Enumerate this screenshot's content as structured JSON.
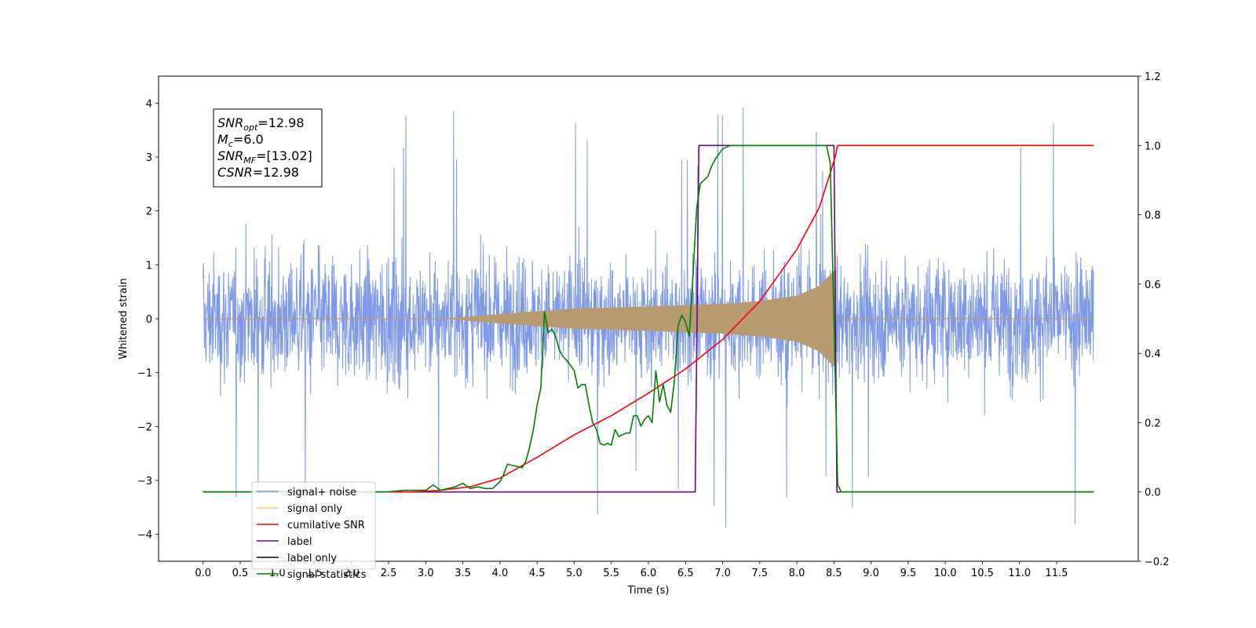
{
  "chart_data": {
    "type": "line",
    "xlabel": "Time (s)",
    "ylabel": "Whitened strain",
    "xlim": [
      -0.6,
      12.6
    ],
    "ylim_left": [
      -4.5,
      4.5
    ],
    "ylim_right": [
      -0.2,
      1.2
    ],
    "x_ticks": [
      0.0,
      0.5,
      1.0,
      1.5,
      2.0,
      2.5,
      3.0,
      3.5,
      4.0,
      4.5,
      5.0,
      5.5,
      6.0,
      6.5,
      7.0,
      7.5,
      8.0,
      8.5,
      9.0,
      9.5,
      10.0,
      10.5,
      11.0,
      11.5
    ],
    "x_tick_labels": [
      "0.0",
      "0.5",
      "1.0",
      "1.5",
      "2.0",
      "2.5",
      "3.0",
      "3.5",
      "4.0",
      "4.5",
      "5.0",
      "5.5",
      "6.0",
      "6.5",
      "7.0",
      "7.5",
      "8.0",
      "8.5",
      "9.0",
      "9.5",
      "10.0",
      "10.5",
      "11.0",
      "11.5"
    ],
    "y_left_ticks": [
      4,
      3,
      2,
      1,
      0,
      -1,
      -2,
      -3,
      -4
    ],
    "y_left_tick_labels": [
      "4",
      "3",
      "2",
      "1",
      "0",
      "−1",
      "−2",
      "−3",
      "−4"
    ],
    "y_right_ticks": [
      1.2,
      1.0,
      0.8,
      0.6,
      0.4,
      0.2,
      0.0,
      -0.2
    ],
    "y_right_tick_labels": [
      "1.2",
      "1.0",
      "0.8",
      "0.6",
      "0.4",
      "0.2",
      "0.0",
      "−0.2"
    ],
    "info_box": [
      {
        "sym": "SNR",
        "sub": "opt",
        "value": "=12.98"
      },
      {
        "sym": "M",
        "sub": "c",
        "value": "=6.0"
      },
      {
        "sym": "SNR",
        "sub": "MF",
        "value": "=[13.02]"
      },
      {
        "sym": "CSNR",
        "sub": "",
        "value": "=12.98"
      }
    ],
    "legend_position": "lower-left",
    "legend": [
      {
        "label": "signal+ noise",
        "color": "#7893e8"
      },
      {
        "label": "signal only",
        "color": "#ffc970"
      },
      {
        "label": "cumilative SNR",
        "color": "#ff0000"
      },
      {
        "label": "label",
        "color": "#6a0a7a"
      },
      {
        "label": "label only",
        "color": "#000000"
      },
      {
        "label": "signal statistics",
        "color": "#008000"
      }
    ],
    "series": [
      {
        "name": "signal+ noise",
        "axis": "left",
        "color": "#7893e8",
        "kind": "noise",
        "x_range": [
          0.0,
          12.0
        ],
        "typical_amplitude": 1.6,
        "peak_max": 4.1,
        "peak_min": -4.0
      },
      {
        "name": "signal only",
        "axis": "left",
        "color": "#b89a70",
        "kind": "chirp",
        "x_range": [
          3.3,
          8.5
        ],
        "envelope": [
          [
            3.3,
            0.0
          ],
          [
            4.0,
            0.08
          ],
          [
            5.0,
            0.18
          ],
          [
            6.0,
            0.22
          ],
          [
            7.0,
            0.27
          ],
          [
            7.5,
            0.32
          ],
          [
            8.0,
            0.42
          ],
          [
            8.3,
            0.6
          ],
          [
            8.5,
            0.88
          ],
          [
            8.52,
            0.0
          ]
        ]
      },
      {
        "name": "cumilative SNR",
        "axis": "right",
        "color": "#ff0000",
        "x": [
          0.0,
          2.8,
          3.2,
          3.6,
          4.0,
          4.5,
          5.0,
          5.5,
          6.0,
          6.5,
          7.0,
          7.5,
          8.0,
          8.3,
          8.45,
          8.52,
          8.55,
          12.0
        ],
        "y": [
          0.0,
          0.0,
          0.005,
          0.015,
          0.04,
          0.1,
          0.165,
          0.22,
          0.285,
          0.355,
          0.44,
          0.55,
          0.7,
          0.82,
          0.92,
          0.97,
          1.0,
          1.0
        ]
      },
      {
        "name": "label",
        "axis": "right",
        "color": "#6a0a7a",
        "x": [
          0.0,
          6.63,
          6.68,
          8.5,
          8.54,
          12.0
        ],
        "y": [
          0.0,
          0.0,
          1.0,
          1.0,
          0.0,
          0.0
        ]
      },
      {
        "name": "signal statistics",
        "axis": "right",
        "color": "#008000",
        "x": [
          0.0,
          2.5,
          2.7,
          3.0,
          3.1,
          3.2,
          3.3,
          3.4,
          3.45,
          3.5,
          3.6,
          3.7,
          3.8,
          3.9,
          4.0,
          4.05,
          4.1,
          4.2,
          4.3,
          4.35,
          4.4,
          4.45,
          4.5,
          4.55,
          4.6,
          4.65,
          4.7,
          4.75,
          4.8,
          4.85,
          4.9,
          5.0,
          5.05,
          5.1,
          5.15,
          5.2,
          5.25,
          5.3,
          5.35,
          5.4,
          5.45,
          5.5,
          5.55,
          5.6,
          5.7,
          5.75,
          5.8,
          5.85,
          5.9,
          5.95,
          6.0,
          6.05,
          6.1,
          6.15,
          6.2,
          6.25,
          6.3,
          6.35,
          6.4,
          6.45,
          6.5,
          6.55,
          6.6,
          6.65,
          6.7,
          6.75,
          6.8,
          6.85,
          6.9,
          7.0,
          7.1,
          7.2,
          7.3,
          8.4,
          8.45,
          8.5,
          8.55,
          8.6,
          8.65,
          12.0
        ],
        "y": [
          0.0,
          0.0,
          0.005,
          0.005,
          0.02,
          0.005,
          0.01,
          0.015,
          0.02,
          0.025,
          0.01,
          0.015,
          0.01,
          0.01,
          0.03,
          0.05,
          0.08,
          0.075,
          0.07,
          0.09,
          0.13,
          0.18,
          0.25,
          0.3,
          0.52,
          0.46,
          0.47,
          0.45,
          0.41,
          0.39,
          0.38,
          0.35,
          0.3,
          0.31,
          0.31,
          0.25,
          0.2,
          0.18,
          0.14,
          0.135,
          0.14,
          0.135,
          0.18,
          0.16,
          0.17,
          0.17,
          0.22,
          0.22,
          0.19,
          0.21,
          0.22,
          0.2,
          0.35,
          0.26,
          0.31,
          0.25,
          0.23,
          0.32,
          0.48,
          0.51,
          0.49,
          0.45,
          0.62,
          0.82,
          0.89,
          0.9,
          0.91,
          0.94,
          0.96,
          0.99,
          1.0,
          1.0,
          1.0,
          1.0,
          0.95,
          0.5,
          0.02,
          0.0,
          0.0,
          0.0
        ]
      }
    ]
  }
}
